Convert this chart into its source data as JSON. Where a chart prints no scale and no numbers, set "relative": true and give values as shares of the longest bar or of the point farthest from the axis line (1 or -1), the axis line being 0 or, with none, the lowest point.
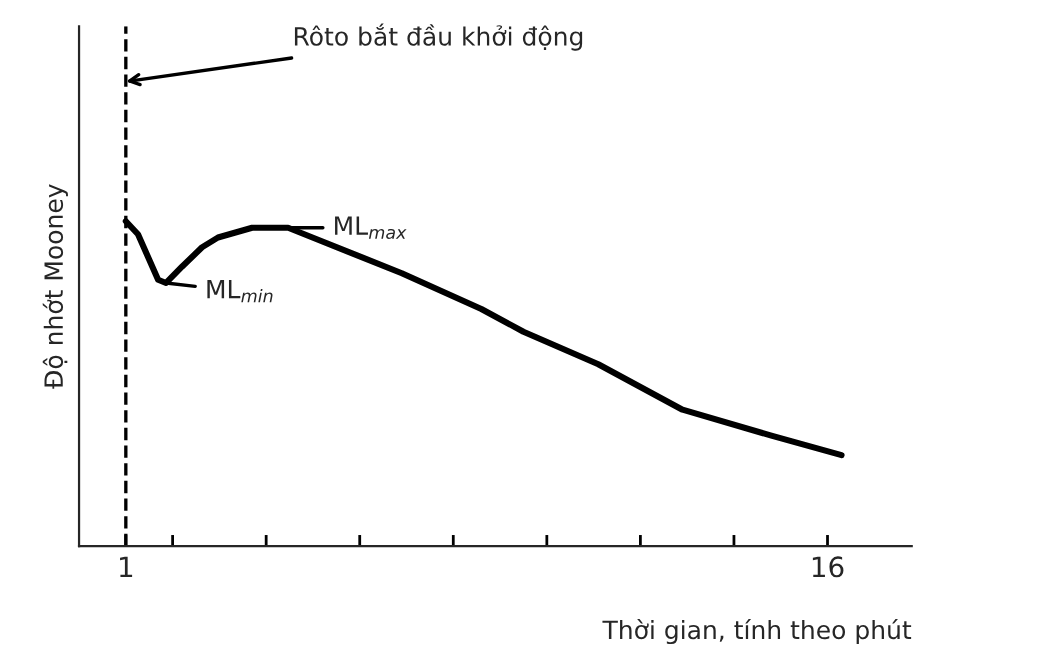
{
  "chart_data": {
    "type": "line",
    "relative": true,
    "ylabel": "Độ nhớt Mooney",
    "xlabel": "Thời gian, tính theo phút",
    "x": [
      1.0,
      1.26,
      1.69,
      1.86,
      2.2,
      2.63,
      2.97,
      3.7,
      4.47,
      4.99,
      6.9,
      8.6,
      9.5,
      11.1,
      12.9,
      14.8,
      16.3
    ],
    "series": [
      {
        "color": "#000000",
        "values": [
          1.0,
          0.96,
          0.82,
          0.81,
          0.86,
          0.92,
          0.95,
          0.98,
          0.98,
          0.95,
          0.84,
          0.73,
          0.66,
          0.56,
          0.42,
          0.34,
          0.28
        ]
      }
    ],
    "xlim": [
      0,
      17.8
    ],
    "xticks": [
      1,
      {
        "value": 2,
        "label": null
      },
      {
        "value": 4,
        "label": null
      },
      {
        "value": 6,
        "label": null
      },
      {
        "value": 8,
        "label": null
      },
      {
        "value": 10,
        "label": null
      },
      {
        "value": 12,
        "label": null
      },
      {
        "value": 14,
        "label": null
      },
      16
    ],
    "ref_lines": [
      {
        "axis": "x",
        "value": 1,
        "color": "#000000",
        "line_style": "dashed"
      }
    ],
    "annotations": [
      {
        "text": "Rôto bắt đầu khởi động",
        "x": 1,
        "y": 1.43
      },
      {
        "text": "ML$_{max}$",
        "x": 4.47,
        "y": 0.98
      },
      {
        "text": "ML$_{min}$",
        "x": 1.86,
        "y": 0.81
      }
    ],
    "grid": false,
    "legend": false,
    "marker": "none",
    "line_style": "solid"
  }
}
